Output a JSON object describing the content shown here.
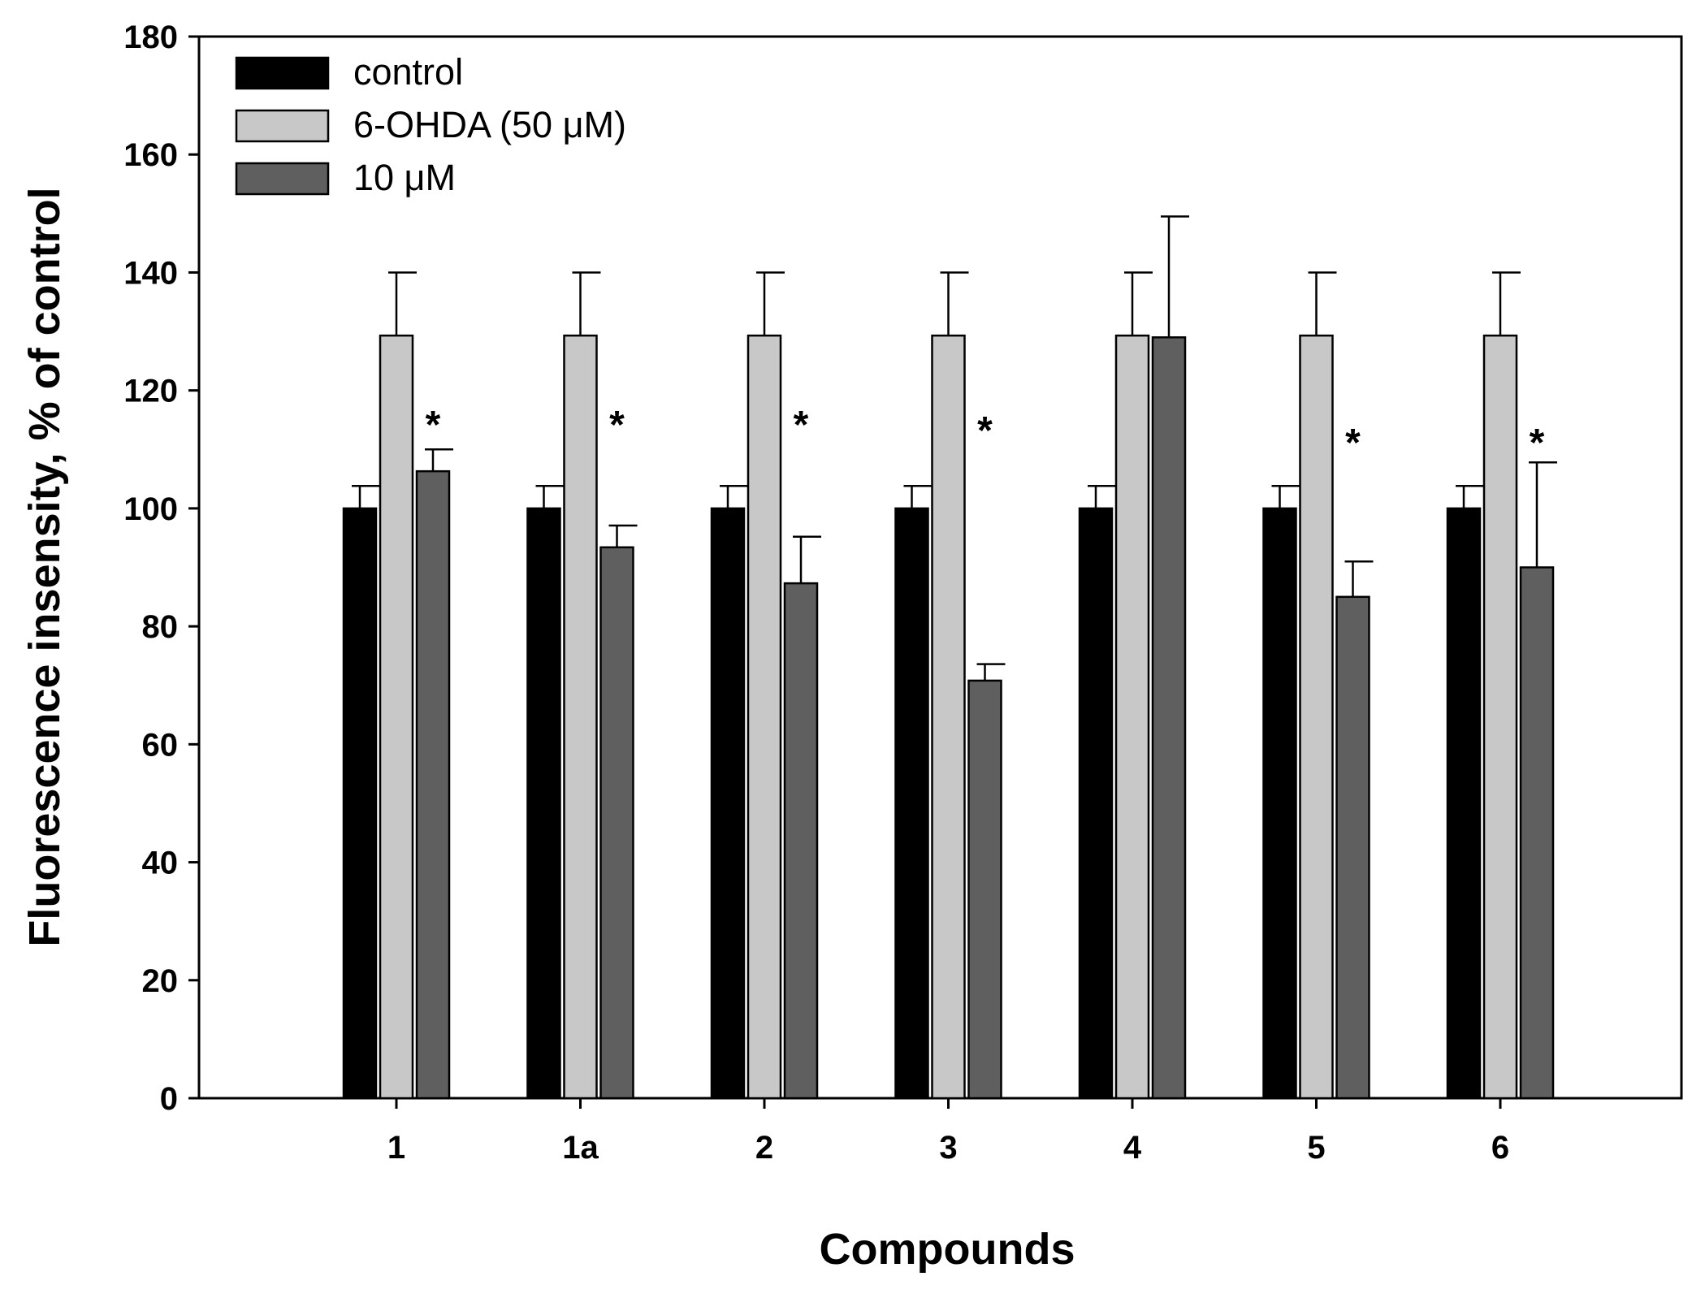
{
  "chart_data": {
    "type": "bar",
    "title": "",
    "xlabel": "Compounds",
    "ylabel": "Fluorescence insensity, % of control",
    "ylim": [
      0,
      180
    ],
    "yticks": [
      0,
      20,
      40,
      60,
      80,
      100,
      120,
      140,
      160,
      180
    ],
    "grid": false,
    "legend_position": "top-left",
    "categories": [
      "1",
      "1a",
      "2",
      "3",
      "4",
      "5",
      "6"
    ],
    "series": [
      {
        "name": "control",
        "color": "#000000",
        "values": [
          100,
          100,
          100,
          100,
          100,
          100,
          100
        ],
        "errors": [
          3.8,
          3.8,
          3.8,
          3.8,
          3.8,
          3.8,
          3.8
        ]
      },
      {
        "name": "6-OHDA (50 μM)",
        "color": "#c8c8c8",
        "values": [
          129.3,
          129.3,
          129.3,
          129.3,
          129.3,
          129.3,
          129.3
        ],
        "errors": [
          10.7,
          10.7,
          10.7,
          10.7,
          10.7,
          10.7,
          10.7
        ]
      },
      {
        "name": "10 μM",
        "color": "#5f5f5f",
        "values": [
          106.3,
          93.4,
          87.3,
          70.8,
          129.0,
          85.0,
          90.0
        ],
        "errors": [
          3.7,
          3.7,
          7.9,
          2.8,
          20.5,
          6.0,
          17.8
        ]
      }
    ],
    "annotations": {
      "symbol": "*",
      "significant": [
        true,
        true,
        true,
        true,
        false,
        true,
        true
      ],
      "y_values": [
        115,
        115,
        115,
        114,
        null,
        112,
        112
      ]
    }
  }
}
